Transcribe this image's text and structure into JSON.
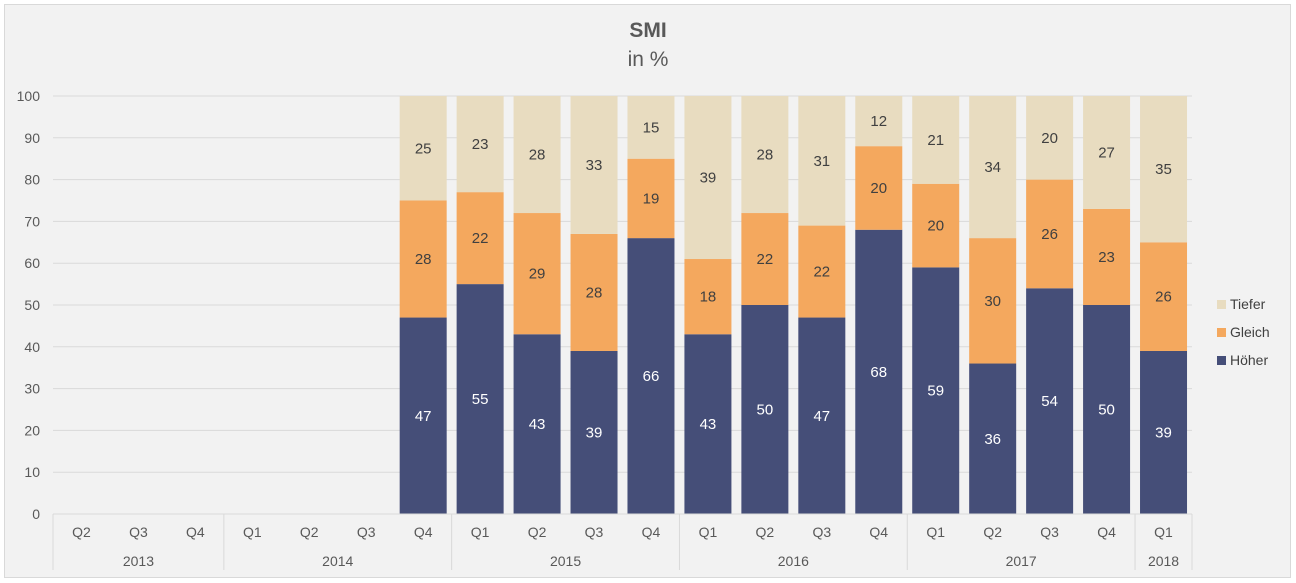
{
  "chart_data": {
    "type": "bar",
    "stacked": true,
    "title": "SMI",
    "subtitle": "in %",
    "ylim": [
      0,
      100
    ],
    "yticks": [
      0,
      10,
      20,
      30,
      40,
      50,
      60,
      70,
      80,
      90,
      100
    ],
    "grid": true,
    "legend_position": "right",
    "categories": [
      "Q2",
      "Q3",
      "Q4",
      "Q1",
      "Q2",
      "Q3",
      "Q4",
      "Q1",
      "Q2",
      "Q3",
      "Q4",
      "Q1",
      "Q2",
      "Q3",
      "Q4",
      "Q1",
      "Q2",
      "Q3",
      "Q4",
      "Q1"
    ],
    "year_groups": [
      {
        "label": "2013",
        "count": 3
      },
      {
        "label": "2014",
        "count": 4
      },
      {
        "label": "2015",
        "count": 4
      },
      {
        "label": "2016",
        "count": 4
      },
      {
        "label": "2017",
        "count": 4
      },
      {
        "label": "2018",
        "count": 1
      }
    ],
    "series": [
      {
        "name": "Höher",
        "color": "#454e78",
        "label_color": "#ffffff",
        "values": [
          null,
          null,
          null,
          null,
          null,
          null,
          47,
          55,
          43,
          39,
          66,
          43,
          50,
          47,
          68,
          59,
          36,
          54,
          50,
          39
        ]
      },
      {
        "name": "Gleich",
        "color": "#f4a85e",
        "label_color": "#404040",
        "values": [
          null,
          null,
          null,
          null,
          null,
          null,
          28,
          22,
          29,
          28,
          19,
          18,
          22,
          22,
          20,
          20,
          30,
          26,
          23,
          26
        ]
      },
      {
        "name": "Tiefer",
        "color": "#e8dcc0",
        "label_color": "#404040",
        "values": [
          null,
          null,
          null,
          null,
          null,
          null,
          25,
          23,
          28,
          33,
          15,
          39,
          28,
          31,
          12,
          21,
          34,
          20,
          27,
          35
        ]
      }
    ],
    "legend_order": [
      "Tiefer",
      "Gleich",
      "Höher"
    ]
  }
}
